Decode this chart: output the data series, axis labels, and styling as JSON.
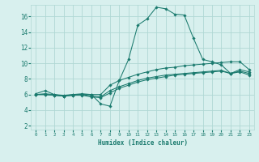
{
  "title": "",
  "xlabel": "Humidex (Indice chaleur)",
  "ylabel": "",
  "background_color": "#d8f0ee",
  "line_color": "#1a7a6e",
  "grid_color": "#b0d8d4",
  "xlim": [
    -0.5,
    23.5
  ],
  "ylim": [
    1.5,
    17.5
  ],
  "xticks": [
    0,
    1,
    2,
    3,
    4,
    5,
    6,
    7,
    8,
    9,
    10,
    11,
    12,
    13,
    14,
    15,
    16,
    17,
    18,
    19,
    20,
    21,
    22,
    23
  ],
  "yticks": [
    2,
    4,
    6,
    8,
    10,
    12,
    14,
    16
  ],
  "series": [
    [
      6.1,
      6.5,
      6.0,
      5.8,
      6.0,
      6.1,
      6.0,
      4.8,
      4.5,
      7.8,
      10.5,
      14.9,
      15.7,
      17.2,
      17.0,
      16.3,
      16.2,
      13.2,
      10.5,
      10.2,
      9.8,
      8.7,
      9.2,
      8.9
    ],
    [
      6.0,
      6.1,
      6.0,
      5.9,
      6.0,
      6.0,
      6.0,
      6.0,
      7.2,
      7.8,
      8.2,
      8.6,
      8.9,
      9.2,
      9.4,
      9.5,
      9.7,
      9.8,
      9.9,
      10.0,
      10.1,
      10.2,
      10.2,
      9.2
    ],
    [
      6.0,
      6.0,
      5.9,
      5.8,
      5.9,
      6.0,
      5.8,
      5.7,
      6.5,
      7.0,
      7.4,
      7.8,
      8.1,
      8.3,
      8.5,
      8.6,
      8.7,
      8.8,
      8.9,
      9.0,
      9.1,
      8.7,
      9.0,
      8.7
    ],
    [
      6.0,
      6.0,
      5.9,
      5.8,
      5.9,
      5.9,
      5.7,
      5.6,
      6.2,
      6.8,
      7.2,
      7.6,
      7.9,
      8.1,
      8.3,
      8.5,
      8.6,
      8.7,
      8.8,
      8.9,
      9.0,
      8.7,
      8.9,
      8.5
    ]
  ]
}
